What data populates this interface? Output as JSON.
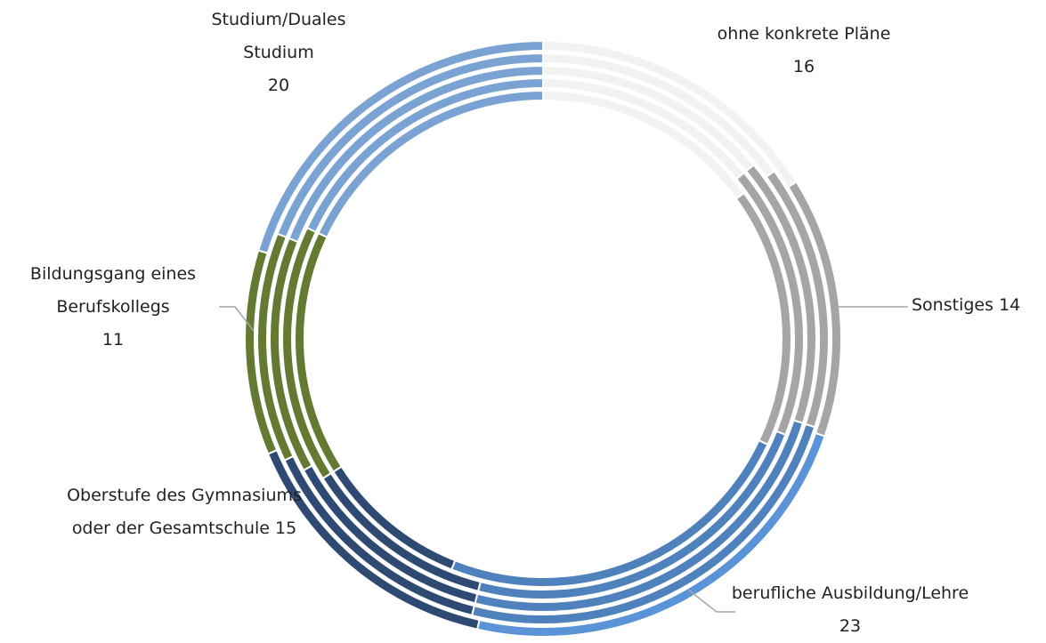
{
  "chart_data": {
    "type": "donut",
    "categories": [
      "ohne konkrete Pläne",
      "Sonstiges",
      "berufliche Ausbildung/Lehre",
      "Oberstufe des Gymnasiums oder der Gesamtschule",
      "Bildungsgang eines Berufskollegs",
      "Studium/Duales Studium"
    ],
    "series": [
      {
        "colors": [
          "#f2f2f2",
          "#a5a5a5",
          "#5b93d9",
          "#2e4a72",
          "#647a32",
          "#7aa3d3"
        ],
        "values": [
          16,
          14,
          23,
          15,
          11,
          20
        ]
      },
      {
        "colors": [
          "#f2f2f2",
          "#a5a5a5",
          "#4f81bd",
          "#2e4a72",
          "#647a32",
          "#7aa3d3"
        ],
        "values": [
          15,
          15,
          24,
          14,
          13,
          19
        ]
      },
      {
        "colors": [
          "#f2f2f2",
          "#a5a5a5",
          "#4f81bd",
          "#2e4a72",
          "#647a32",
          "#7aa3d3"
        ],
        "values": [
          14,
          16,
          24,
          13,
          14,
          19
        ]
      },
      {
        "colors": [
          "#f2f2f2",
          "#a5a5a5",
          "#4f81bd",
          "#2e4a72",
          "#647a32",
          "#7aa3d3"
        ],
        "values": [
          14,
          17,
          23,
          12,
          16,
          18
        ]
      },
      {
        "colors": [
          "#f2f2f2",
          "#a5a5a5",
          "#4f81bd",
          "#2e4a72",
          "#647a32",
          "#7aa3d3"
        ],
        "values": [
          15,
          17,
          24,
          10,
          16,
          18
        ]
      }
    ]
  }
}
